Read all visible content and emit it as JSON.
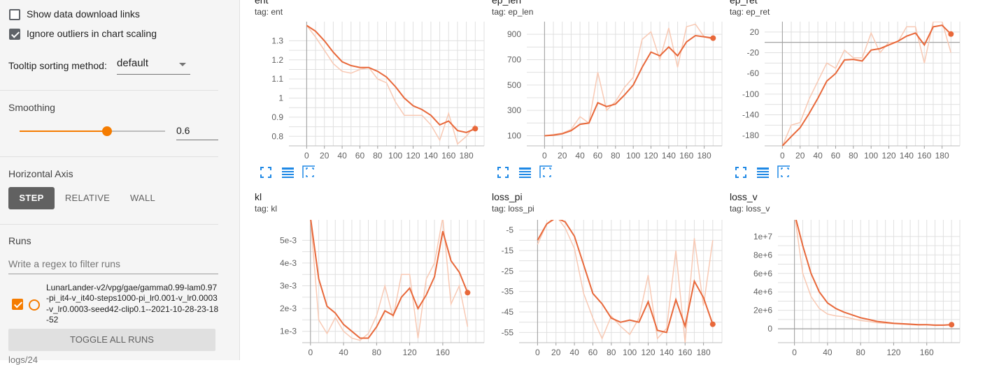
{
  "sidebar": {
    "show_download_label": "Show data download links",
    "show_download_checked": false,
    "ignore_outliers_label": "Ignore outliers in chart scaling",
    "ignore_outliers_checked": true,
    "tooltip_label": "Tooltip sorting method:",
    "tooltip_value": "default",
    "smoothing_title": "Smoothing",
    "smoothing_value": "0.6",
    "smoothing_fraction": 0.6,
    "horizontal_axis_title": "Horizontal Axis",
    "axis_options": [
      "STEP",
      "RELATIVE",
      "WALL"
    ],
    "axis_selected": "STEP",
    "runs_title": "Runs",
    "runs_filter_placeholder": "Write a regex to filter runs",
    "run_name": "LunarLander-v2/vpg/gae/gamma0.99-lam0.97-pi_it4-v_it40-steps1000-pi_lr0.001-v_lr0.0003-v_lr0.0003-seed42-clip0.1--2021-10-28-23-18-52",
    "run_checked": true,
    "toggle_all_label": "TOGGLE ALL RUNS",
    "logs_label": "logs/24"
  },
  "colors": {
    "accent": "#f57c00",
    "smoothed_line": "#e8683a",
    "raw_line": "#f8c9b4",
    "icon_blue": "#1e88e5",
    "grid": "#e0e0e0"
  },
  "cards": [
    {
      "title": "ent",
      "tag": "tag: ent",
      "x_ticks": [
        "0",
        "20",
        "40",
        "60",
        "80",
        "100",
        "120",
        "140",
        "160",
        "180"
      ],
      "y_ticks": [
        "1.3",
        "1.2",
        "1.1",
        "1",
        "0.9",
        "0.8"
      ],
      "icons": [
        "fullscreen-icon",
        "data-table-icon",
        "fit-domain-icon"
      ]
    },
    {
      "title": "ep_len",
      "tag": "tag: ep_len",
      "x_ticks": [
        "0",
        "20",
        "40",
        "60",
        "80",
        "100",
        "120",
        "140",
        "160",
        "180"
      ],
      "y_ticks": [
        "900",
        "700",
        "500",
        "300",
        "100"
      ],
      "icons": [
        "fullscreen-icon",
        "data-table-icon",
        "fit-domain-icon"
      ]
    },
    {
      "title": "ep_ret",
      "tag": "tag: ep_ret",
      "x_ticks": [
        "0",
        "20",
        "40",
        "60",
        "80",
        "100",
        "120",
        "140",
        "160",
        "180"
      ],
      "y_ticks": [
        "20",
        "-20",
        "-60",
        "-100",
        "-140",
        "-180"
      ],
      "icons": [
        "fullscreen-icon",
        "data-table-icon",
        "fit-domain-icon"
      ]
    },
    {
      "title": "kl",
      "tag": "tag: kl",
      "x_ticks": [
        "0",
        "40",
        "80",
        "120",
        "160"
      ],
      "y_ticks": [
        "5e-3",
        "4e-3",
        "3e-3",
        "2e-3",
        "1e-3"
      ],
      "icons": []
    },
    {
      "title": "loss_pi",
      "tag": "tag: loss_pi",
      "x_ticks": [
        "0",
        "20",
        "40",
        "60",
        "80",
        "100",
        "120",
        "140",
        "160",
        "180"
      ],
      "y_ticks": [
        "-5",
        "-15",
        "-25",
        "-35",
        "-45",
        "-55"
      ],
      "icons": []
    },
    {
      "title": "loss_v",
      "tag": "tag: loss_v",
      "x_ticks": [
        "0",
        "40",
        "80",
        "120",
        "160"
      ],
      "y_ticks": [
        "1e+7",
        "8e+6",
        "6e+6",
        "4e+6",
        "2e+6",
        "0"
      ],
      "icons": []
    }
  ],
  "chart_data": [
    {
      "type": "line",
      "title": "ent",
      "xlim": [
        -20,
        200
      ],
      "ylim": [
        0.75,
        1.4
      ],
      "x": [
        0,
        10,
        20,
        30,
        40,
        50,
        60,
        70,
        80,
        90,
        100,
        110,
        120,
        130,
        140,
        150,
        160,
        170,
        180,
        190
      ],
      "series": [
        {
          "values": [
            1.38,
            1.35,
            1.3,
            1.24,
            1.19,
            1.17,
            1.16,
            1.16,
            1.14,
            1.11,
            1.06,
            1.0,
            0.96,
            0.94,
            0.91,
            0.86,
            0.88,
            0.83,
            0.82,
            0.84
          ]
        },
        {
          "values": [
            1.38,
            1.32,
            1.25,
            1.18,
            1.14,
            1.13,
            1.15,
            1.16,
            1.1,
            1.08,
            0.98,
            0.91,
            0.91,
            0.91,
            0.86,
            0.78,
            0.92,
            0.76,
            0.8,
            0.86
          ]
        }
      ]
    },
    {
      "type": "line",
      "title": "ep_len",
      "xlim": [
        -20,
        200
      ],
      "ylim": [
        20,
        1000
      ],
      "x": [
        0,
        10,
        20,
        30,
        40,
        50,
        60,
        70,
        80,
        90,
        100,
        110,
        120,
        130,
        140,
        150,
        160,
        170,
        180,
        190
      ],
      "series": [
        {
          "values": [
            100,
            105,
            115,
            140,
            190,
            200,
            360,
            330,
            350,
            420,
            500,
            640,
            760,
            730,
            800,
            730,
            840,
            890,
            880,
            870
          ]
        },
        {
          "values": [
            100,
            110,
            120,
            150,
            250,
            200,
            600,
            300,
            370,
            480,
            560,
            860,
            920,
            700,
            950,
            640,
            960,
            980,
            880,
            860
          ]
        }
      ]
    },
    {
      "type": "line",
      "title": "ep_ret",
      "xlim": [
        -20,
        200
      ],
      "ylim": [
        -200,
        40
      ],
      "x": [
        0,
        10,
        20,
        30,
        40,
        50,
        60,
        70,
        80,
        90,
        100,
        110,
        120,
        130,
        140,
        150,
        160,
        170,
        180,
        190
      ],
      "series": [
        {
          "values": [
            -200,
            -182,
            -165,
            -138,
            -108,
            -75,
            -60,
            -34,
            -33,
            -36,
            -15,
            -12,
            -5,
            2,
            12,
            18,
            -5,
            30,
            33,
            16
          ]
        },
        {
          "values": [
            -200,
            -160,
            -155,
            -110,
            -75,
            -40,
            -50,
            -15,
            -30,
            -30,
            18,
            -20,
            0,
            0,
            30,
            30,
            -40,
            40,
            40,
            -20
          ]
        }
      ]
    },
    {
      "type": "line",
      "title": "kl",
      "xlim": [
        -10,
        210
      ],
      "ylim": [
        0.0005,
        0.0059
      ],
      "x": [
        0,
        10,
        20,
        30,
        40,
        50,
        60,
        70,
        80,
        90,
        100,
        110,
        120,
        130,
        140,
        150,
        160,
        170,
        180,
        190
      ],
      "series": [
        {
          "values": [
            0.006,
            0.0033,
            0.0021,
            0.0018,
            0.0013,
            0.001,
            0.0007,
            0.0007,
            0.0012,
            0.0019,
            0.0017,
            0.0025,
            0.0029,
            0.002,
            0.0026,
            0.0034,
            0.0054,
            0.0041,
            0.0036,
            0.0027
          ]
        },
        {
          "values": [
            0.006,
            0.0015,
            0.0009,
            0.0016,
            0.001,
            0.0007,
            0.0006,
            0.0009,
            0.0017,
            0.003,
            0.0016,
            0.0035,
            0.0035,
            0.0007,
            0.0033,
            0.004,
            0.006,
            0.0022,
            0.003,
            0.0012
          ]
        }
      ]
    },
    {
      "type": "line",
      "title": "loss_pi",
      "xlim": [
        -20,
        200
      ],
      "ylim": [
        -60,
        0
      ],
      "x": [
        0,
        10,
        20,
        30,
        40,
        50,
        60,
        70,
        80,
        90,
        100,
        110,
        120,
        130,
        140,
        150,
        160,
        170,
        180,
        190
      ],
      "series": [
        {
          "values": [
            -10,
            -2,
            1,
            -1,
            -8,
            -22,
            -36,
            -41,
            -48,
            -50,
            -49,
            -50,
            -40,
            -54,
            -55,
            -39,
            -52,
            -30,
            -38,
            -51
          ]
        },
        {
          "values": [
            -12,
            -2,
            2,
            -4,
            -14,
            -36,
            -48,
            -58,
            -47,
            -52,
            -56,
            -48,
            -27,
            -58,
            -53,
            -15,
            -60,
            -9,
            -42,
            -10
          ]
        }
      ]
    },
    {
      "type": "line",
      "title": "loss_v",
      "xlim": [
        -20,
        200
      ],
      "ylim": [
        -1500000,
        11800000
      ],
      "x": [
        0,
        10,
        20,
        30,
        40,
        50,
        60,
        70,
        80,
        90,
        100,
        110,
        120,
        130,
        140,
        150,
        160,
        170,
        180,
        190
      ],
      "series": [
        {
          "values": [
            12500000,
            9000000,
            6000000,
            4000000,
            2800000,
            2200000,
            1800000,
            1500000,
            1200000,
            1000000,
            800000,
            700000,
            600000,
            550000,
            500000,
            450000,
            450000,
            400000,
            400000,
            450000
          ]
        },
        {
          "values": [
            12500000,
            6000000,
            3500000,
            2200000,
            1600000,
            1400000,
            1300000,
            1100000,
            900000,
            800000,
            650000,
            600000,
            550000,
            500000,
            450000,
            400000,
            450000,
            350000,
            380000,
            480000
          ]
        }
      ]
    }
  ]
}
